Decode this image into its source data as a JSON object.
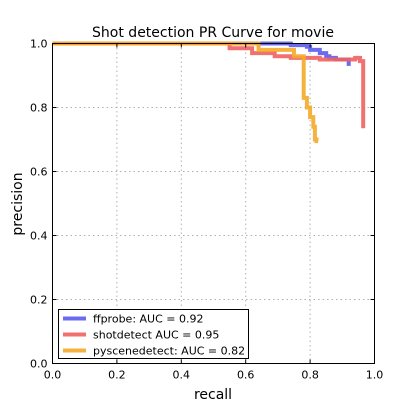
{
  "chart_data": {
    "type": "line",
    "title": "Shot detection PR Curve for movie",
    "xlabel": "recall",
    "ylabel": "precision",
    "xlim": [
      0.0,
      1.0
    ],
    "ylim": [
      0.0,
      1.0
    ],
    "xticks": [
      "0.0",
      "0.2",
      "0.4",
      "0.6",
      "0.8",
      "1.0"
    ],
    "yticks": [
      "0.0",
      "0.2",
      "0.4",
      "0.6",
      "0.8",
      "1.0"
    ],
    "grid": true,
    "legend_position": "lower-left",
    "series": [
      {
        "name": "ffprobe: AUC = 0.92",
        "color": "#5b5bf0",
        "points": [
          [
            0.0,
            1.0
          ],
          [
            0.74,
            1.0
          ],
          [
            0.74,
            0.995
          ],
          [
            0.79,
            0.995
          ],
          [
            0.79,
            0.99
          ],
          [
            0.8,
            0.99
          ],
          [
            0.8,
            0.98
          ],
          [
            0.83,
            0.98
          ],
          [
            0.83,
            0.97
          ],
          [
            0.85,
            0.97
          ],
          [
            0.85,
            0.96
          ],
          [
            0.86,
            0.96
          ],
          [
            0.86,
            0.955
          ],
          [
            0.88,
            0.955
          ],
          [
            0.88,
            0.95
          ],
          [
            0.92,
            0.95
          ],
          [
            0.92,
            0.93
          ]
        ]
      },
      {
        "name": "shotdetect AUC = 0.95",
        "color": "#f06262",
        "points": [
          [
            0.0,
            1.0
          ],
          [
            0.55,
            1.0
          ],
          [
            0.55,
            0.985
          ],
          [
            0.62,
            0.985
          ],
          [
            0.62,
            0.97
          ],
          [
            0.69,
            0.97
          ],
          [
            0.69,
            0.96
          ],
          [
            0.74,
            0.96
          ],
          [
            0.74,
            0.955
          ],
          [
            0.83,
            0.955
          ],
          [
            0.83,
            0.95
          ],
          [
            0.86,
            0.95
          ],
          [
            0.86,
            0.95
          ],
          [
            0.94,
            0.95
          ],
          [
            0.94,
            0.955
          ],
          [
            0.955,
            0.955
          ],
          [
            0.955,
            0.945
          ],
          [
            0.965,
            0.945
          ],
          [
            0.965,
            0.735
          ]
        ]
      },
      {
        "name": "pyscenedetect: AUC = 0.82",
        "color": "#f5aa2a",
        "points": [
          [
            0.0,
            1.0
          ],
          [
            0.64,
            1.0
          ],
          [
            0.64,
            0.98
          ],
          [
            0.75,
            0.98
          ],
          [
            0.75,
            0.96
          ],
          [
            0.78,
            0.96
          ],
          [
            0.78,
            0.83
          ],
          [
            0.79,
            0.83
          ],
          [
            0.79,
            0.8
          ],
          [
            0.8,
            0.8
          ],
          [
            0.8,
            0.77
          ],
          [
            0.81,
            0.77
          ],
          [
            0.81,
            0.74
          ],
          [
            0.815,
            0.74
          ],
          [
            0.815,
            0.7
          ],
          [
            0.82,
            0.7
          ],
          [
            0.82,
            0.695
          ],
          [
            0.825,
            0.695
          ]
        ]
      }
    ]
  }
}
